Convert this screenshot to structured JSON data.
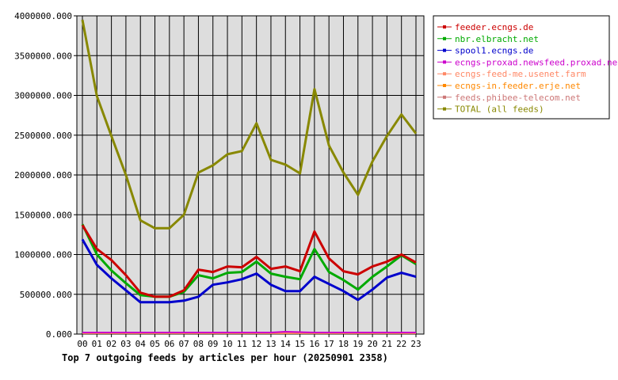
{
  "chart_data": {
    "type": "line",
    "title": "Top 7 outgoing feeds by articles per hour (20250901 2358)",
    "xlabel": "",
    "ylabel": "",
    "categories": [
      "00",
      "01",
      "02",
      "03",
      "04",
      "05",
      "06",
      "07",
      "08",
      "09",
      "10",
      "11",
      "12",
      "13",
      "14",
      "15",
      "16",
      "17",
      "18",
      "19",
      "20",
      "21",
      "22",
      "23"
    ],
    "yticks": [
      "0.000",
      "500000.000",
      "1000000.000",
      "1500000.000",
      "2000000.000",
      "2500000.000",
      "3000000.000",
      "3500000.000",
      "4000000.000"
    ],
    "ylim": [
      0,
      4000000
    ],
    "grid": true,
    "legend_position": "right",
    "series": [
      {
        "name": "feeder.ecngs.de",
        "color": "#cc0000",
        "values": [
          1370000,
          1070000,
          930000,
          740000,
          520000,
          470000,
          470000,
          550000,
          810000,
          780000,
          850000,
          840000,
          970000,
          820000,
          850000,
          790000,
          1290000,
          950000,
          790000,
          750000,
          850000,
          910000,
          1000000,
          900000
        ]
      },
      {
        "name": "nbr.elbracht.net",
        "color": "#00aa00",
        "values": [
          1380000,
          1000000,
          800000,
          640000,
          490000,
          470000,
          470000,
          530000,
          740000,
          700000,
          770000,
          780000,
          910000,
          760000,
          720000,
          690000,
          1070000,
          780000,
          680000,
          560000,
          720000,
          850000,
          990000,
          880000
        ]
      },
      {
        "name": "spool1.ecngs.de",
        "color": "#0000cc",
        "values": [
          1190000,
          870000,
          700000,
          550000,
          400000,
          400000,
          400000,
          420000,
          470000,
          620000,
          650000,
          690000,
          760000,
          620000,
          540000,
          540000,
          720000,
          630000,
          540000,
          430000,
          560000,
          710000,
          770000,
          720000
        ]
      },
      {
        "name": "ecngs-proxad.newsfeed.proxad.net",
        "color": "#cc00cc",
        "values": [
          20000,
          20000,
          20000,
          20000,
          20000,
          20000,
          20000,
          20000,
          20000,
          20000,
          20000,
          20000,
          20000,
          20000,
          30000,
          25000,
          20000,
          20000,
          20000,
          20000,
          20000,
          20000,
          20000,
          20000
        ]
      },
      {
        "name": "ecngs-feed-me.usenet.farm",
        "color": "#ff8866",
        "values": [
          15000,
          15000,
          15000,
          15000,
          15000,
          15000,
          15000,
          15000,
          15000,
          15000,
          15000,
          15000,
          15000,
          15000,
          15000,
          15000,
          15000,
          15000,
          15000,
          15000,
          15000,
          15000,
          15000,
          15000
        ]
      },
      {
        "name": "ecngs-in.feeder.erje.net",
        "color": "#ff8800",
        "values": [
          12000,
          12000,
          12000,
          12000,
          12000,
          12000,
          12000,
          12000,
          12000,
          12000,
          12000,
          12000,
          12000,
          12000,
          12000,
          12000,
          12000,
          12000,
          12000,
          12000,
          12000,
          12000,
          12000,
          12000
        ]
      },
      {
        "name": "feeds.phibee-telecom.net",
        "color": "#cc7777",
        "values": [
          10000,
          10000,
          10000,
          10000,
          10000,
          10000,
          10000,
          10000,
          10000,
          10000,
          10000,
          10000,
          10000,
          10000,
          10000,
          10000,
          10000,
          10000,
          10000,
          10000,
          10000,
          10000,
          10000,
          10000
        ]
      },
      {
        "name": "TOTAL (all feeds)",
        "color": "#888800",
        "values": [
          3950000,
          2990000,
          2490000,
          2000000,
          1430000,
          1330000,
          1330000,
          1500000,
          2030000,
          2120000,
          2260000,
          2300000,
          2650000,
          2190000,
          2130000,
          2020000,
          3080000,
          2370000,
          2030000,
          1750000,
          2170000,
          2490000,
          2760000,
          2520000
        ]
      }
    ]
  }
}
